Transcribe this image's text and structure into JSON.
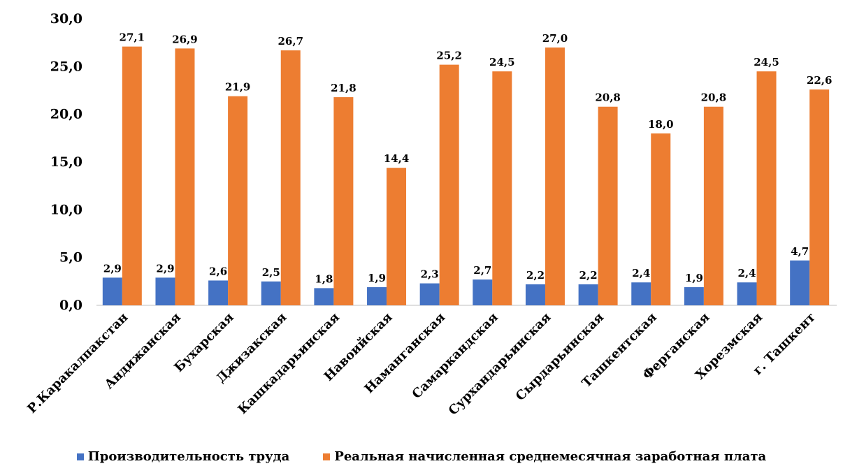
{
  "chart_data": {
    "type": "bar",
    "title": "",
    "xlabel": "",
    "ylabel": "",
    "ylim": [
      0,
      30
    ],
    "yticks": [
      "0,0",
      "5,0",
      "10,0",
      "15,0",
      "20,0",
      "25,0",
      "30,0"
    ],
    "grid": false,
    "legend_position": "bottom",
    "categories": [
      "Р.Каракалпакстан",
      "Андижанская",
      "Бухарская",
      "Джизакская",
      "Кашкадарьинская",
      "Навоийская",
      "Наманганская",
      "Самаркандская",
      "Сурхандарьинская",
      "Сырдарьинская",
      "Ташкентская",
      "Ферганская",
      "Хорезмская",
      "г. Ташкент"
    ],
    "series": [
      {
        "name": "Производительность труда",
        "color": "#4472C4",
        "values": [
          2.9,
          2.9,
          2.6,
          2.5,
          1.8,
          1.9,
          2.3,
          2.7,
          2.2,
          2.2,
          2.4,
          1.9,
          2.4,
          4.7
        ],
        "labels": [
          "2,9",
          "2,9",
          "2,6",
          "2,5",
          "1,8",
          "1,9",
          "2,3",
          "2,7",
          "2,2",
          "2,2",
          "2,4",
          "1,9",
          "2,4",
          "4,7"
        ]
      },
      {
        "name": "Реальная начисленная среднемесячная заработная плата",
        "color": "#ED7D31",
        "values": [
          27.1,
          26.9,
          21.9,
          26.7,
          21.8,
          14.4,
          25.2,
          24.5,
          27.0,
          20.8,
          18.0,
          20.8,
          24.5,
          22.6
        ],
        "labels": [
          "27,1",
          "26,9",
          "21,9",
          "26,7",
          "21,8",
          "14,4",
          "25,2",
          "24,5",
          "27,0",
          "20,8",
          "18,0",
          "20,8",
          "24,5",
          "22,6"
        ]
      }
    ]
  }
}
